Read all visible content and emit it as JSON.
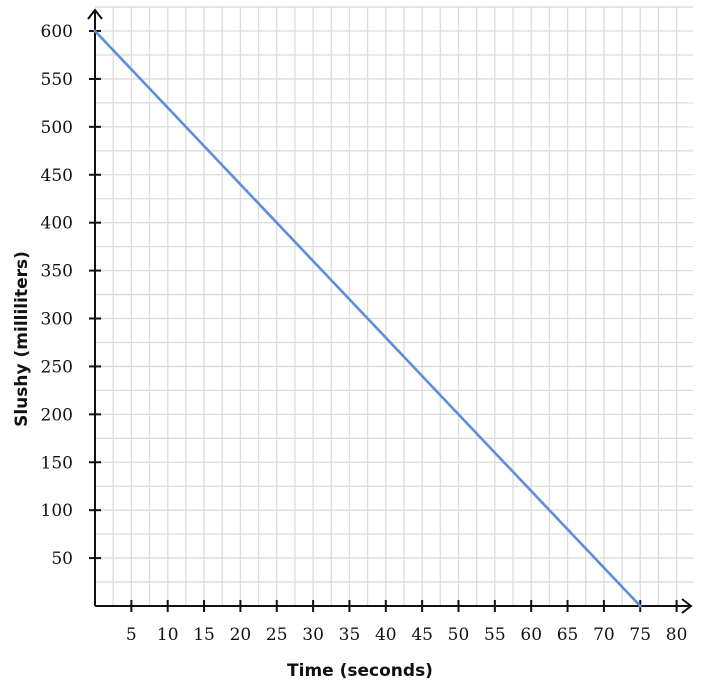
{
  "chart_data": {
    "type": "line",
    "title": "",
    "xlabel": "Time (seconds)",
    "ylabel": "Slushy (milliliters)",
    "xlim": [
      0,
      82
    ],
    "ylim": [
      0,
      600
    ],
    "x_ticks": [
      5,
      10,
      15,
      20,
      25,
      30,
      35,
      40,
      45,
      50,
      55,
      60,
      65,
      70,
      75,
      80
    ],
    "y_ticks": [
      50,
      100,
      150,
      200,
      250,
      300,
      350,
      400,
      450,
      500,
      550,
      600
    ],
    "x_ticks_text": [
      "5",
      "10",
      "15",
      "20",
      "25",
      "30",
      "35",
      "40",
      "45",
      "50",
      "55",
      "60",
      "65",
      "70",
      "75",
      "80"
    ],
    "y_ticks_text": [
      "50",
      "100",
      "150",
      "200",
      "250",
      "300",
      "350",
      "400",
      "450",
      "500",
      "550",
      "600"
    ],
    "grid": true,
    "legend": "none",
    "series": [
      {
        "x": [
          0,
          75
        ],
        "y": [
          600,
          0
        ],
        "color": "#5b8edb"
      }
    ]
  }
}
